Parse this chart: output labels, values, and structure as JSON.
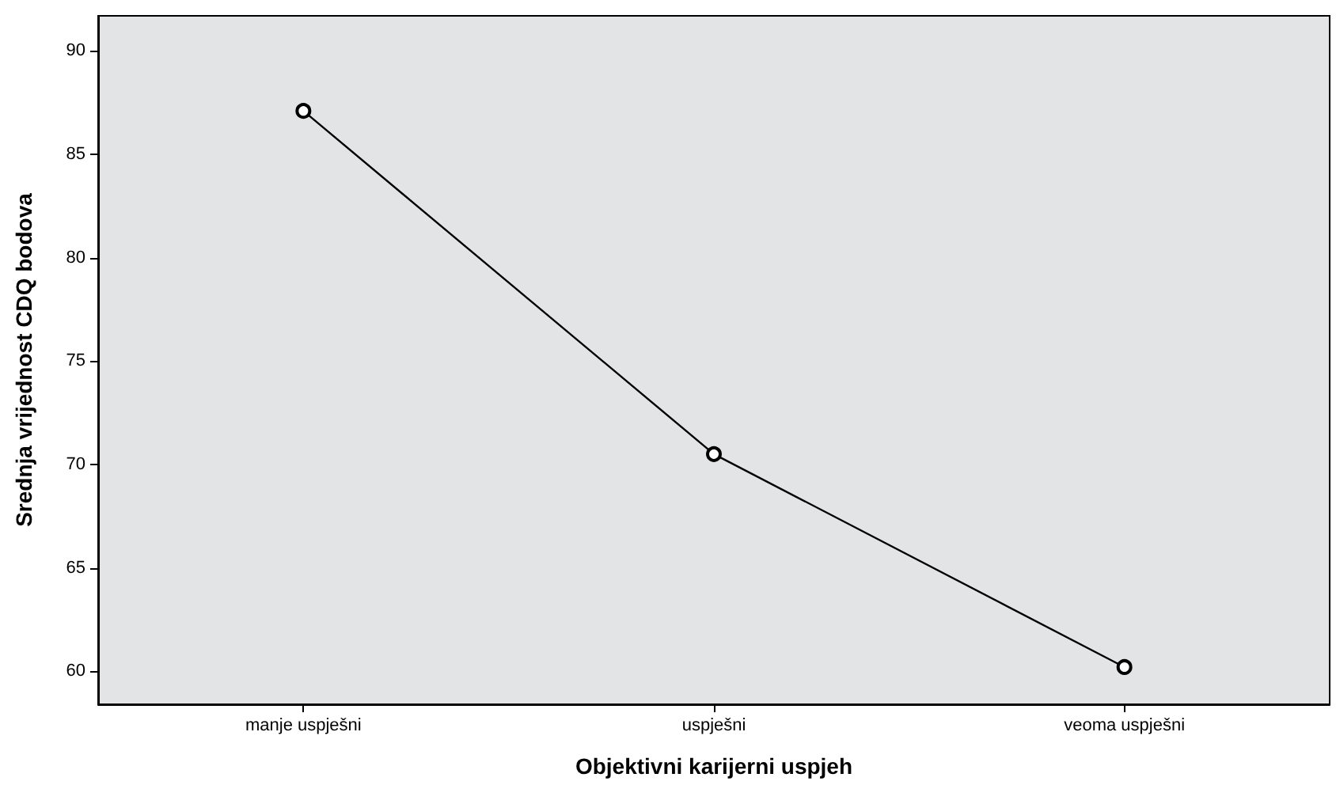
{
  "chart_data": {
    "type": "line",
    "xlabel": "Objektivni karijerni uspjeh",
    "ylabel": "Srednja vrijednost CDQ bodova",
    "categories": [
      "manje uspješni",
      "uspješni",
      "veoma uspješni"
    ],
    "series": [
      {
        "color": "#000000",
        "values": [
          87.1,
          70.5,
          60.2
        ]
      }
    ],
    "ylim": [
      58.4,
      91.7
    ],
    "yticks": [
      60,
      65,
      70,
      75,
      80,
      85,
      90
    ],
    "marker": "circle",
    "line_style": "solid"
  }
}
